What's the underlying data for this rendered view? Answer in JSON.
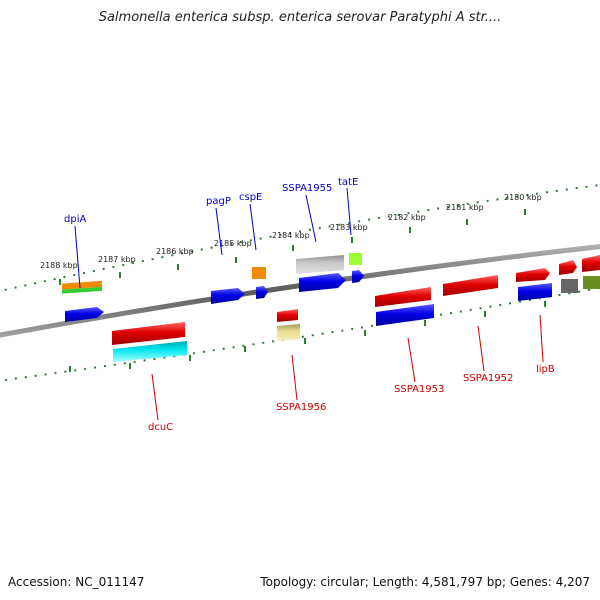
{
  "title": "Salmonella enterica subsp. enterica serovar Paratyphi A str....",
  "footer": {
    "accession": "Accession: NC_011147",
    "topology": "Topology: circular; Length: 4,581,797 bp; Genes: 4,207"
  },
  "ruler_labels": [
    "2188 kbp",
    "2187 kbp",
    "2186 kbp",
    "2185 kbp",
    "2184 kbp",
    "2183 kbp",
    "2182 kbp",
    "2181 kbp",
    "2180 kbp"
  ],
  "gene_labels_top": [
    "dpiA",
    "pagP",
    "cspE",
    "SSPA1955",
    "tatE"
  ],
  "gene_labels_bottom": [
    "dcuC",
    "SSPA1956",
    "SSPA1953",
    "SSPA1952",
    "lipB"
  ],
  "colors": {
    "backbone": "#808080",
    "ruler_ticks": "#2e7d32",
    "label_top": "#0000cc",
    "label_bottom": "#cc0000",
    "gene_red": "#e00000",
    "gene_blue": "#0000e6",
    "gene_cyan": "#00e5ee",
    "gene_orange": "#f08a00",
    "gene_green": "#33cc33",
    "gene_lime": "#99ff33",
    "gene_gray": "#b8b8b8",
    "gene_khaki": "#e6dc8c",
    "gene_dark_gray": "#666666",
    "gene_olive": "#6b8e23"
  }
}
